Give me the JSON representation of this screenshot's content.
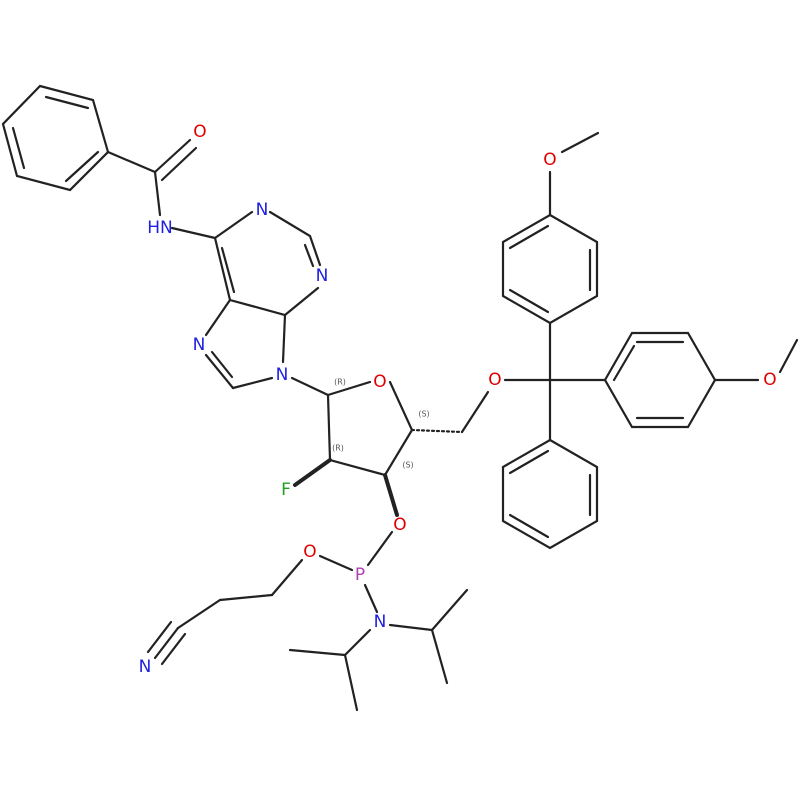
{
  "atoms": {
    "amide_o": "O",
    "amide_nh": "HN",
    "n1": "N",
    "n3": "N",
    "n7": "N",
    "n9": "N",
    "ring_o": "O",
    "fluorine": "F",
    "o3": "O",
    "o5": "O",
    "ome_top": "O",
    "ome_right": "O",
    "phos_o": "O",
    "phosphorus": "P",
    "phos_n": "N",
    "nitrile_n": "N"
  },
  "stereo": {
    "c1": "(R)",
    "c2": "(R)",
    "c3": "(S)",
    "c4": "(S)"
  }
}
